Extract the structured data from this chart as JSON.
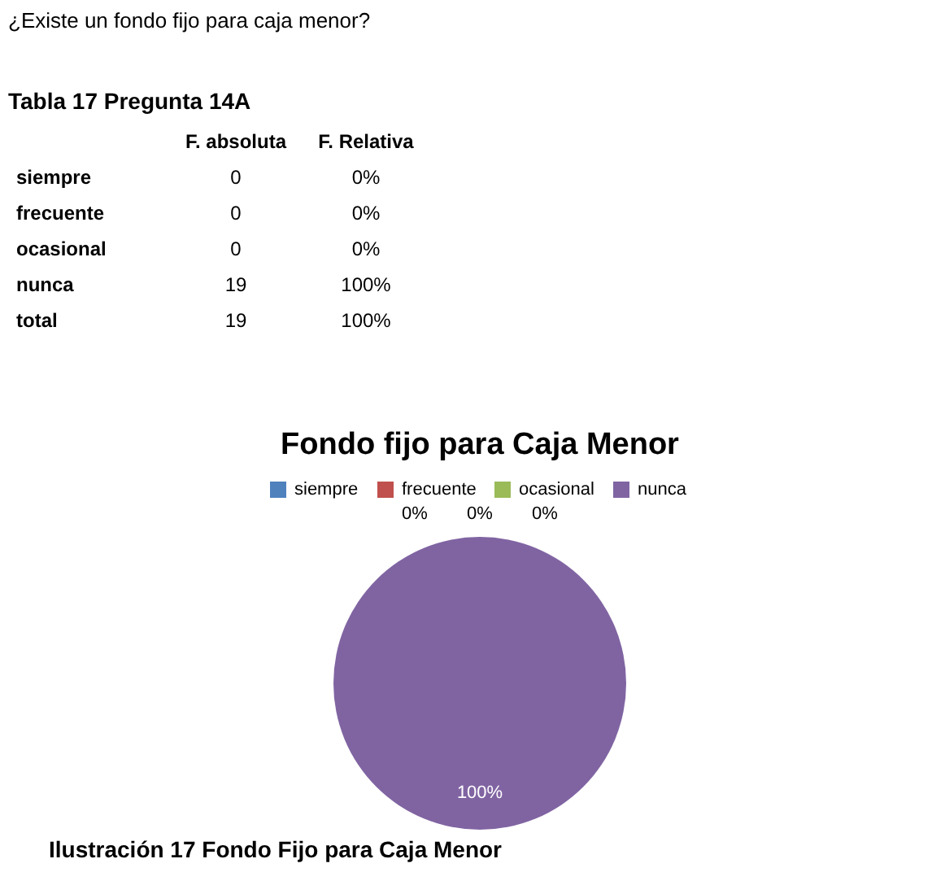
{
  "chart_data": {
    "type": "pie",
    "title": "Fondo fijo para Caja Menor",
    "categories": [
      "siempre",
      "frecuente",
      "ocasional",
      "nunca"
    ],
    "values": [
      0,
      0,
      0,
      100
    ],
    "colors": [
      "#4f81bd",
      "#c0504d",
      "#9bbb59",
      "#8064a2"
    ],
    "value_labels": [
      "0%",
      "0%",
      "0%",
      "100%"
    ],
    "legend": "top",
    "annotations": [
      "¿Existe un fondo fijo para caja menor?",
      "Tabla 17 Pregunta 14A",
      "F. absoluta",
      "F. Relativa",
      "siempre",
      "0",
      "0%",
      "frecuente",
      "0",
      "0%",
      "ocasional",
      "0",
      "0%",
      "nunca",
      "19",
      "100%",
      "total",
      "19",
      "100%",
      "Ilustración 17 Fondo Fijo para Caja Menor"
    ]
  }
}
